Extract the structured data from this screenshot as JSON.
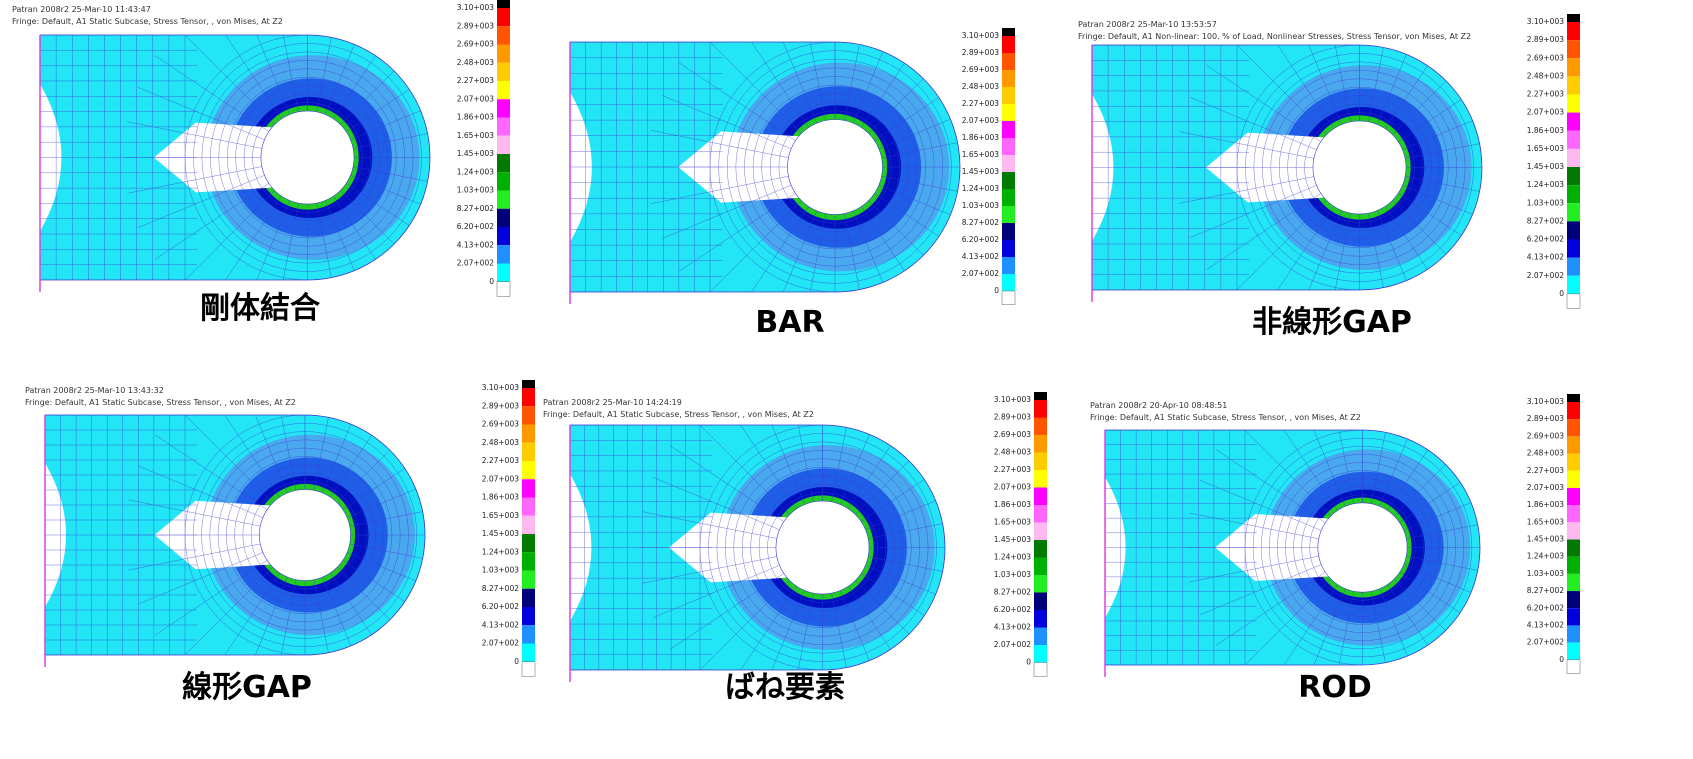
{
  "legend": {
    "labels": [
      "3.10+003",
      "2.89+003",
      "2.69+003",
      "2.48+003",
      "2.27+003",
      "2.07+003",
      "1.86+003",
      "1.65+003",
      "1.45+003",
      "1.24+003",
      "1.03+003",
      "8.27+002",
      "6.20+002",
      "4.13+002",
      "2.07+002",
      "0"
    ]
  },
  "panels": [
    {
      "header": [
        "Patran 2008r2 25-Mar-10 11:43:47",
        "Fringe: Default, A1 Static Subcase, Stress Tensor, , von Mises, At Z2"
      ],
      "caption": "剛体結合"
    },
    {
      "caption": "BAR"
    },
    {
      "header": [
        "Patran 2008r2 25-Mar-10 13:53:57",
        "Fringe: Default, A1 Non-linear: 100. % of Load, Nonlinear Stresses, Stress Tensor, von Mises, At Z2"
      ],
      "caption": "非線形GAP"
    },
    {
      "header": [
        "Patran 2008r2 25-Mar-10 13:43:32",
        "Fringe: Default, A1 Static Subcase, Stress Tensor, , von Mises, At Z2"
      ],
      "caption": "線形GAP"
    },
    {
      "header": [
        "Patran 2008r2 25-Mar-10 14:24:19",
        "Fringe: Default, A1 Static Subcase, Stress Tensor, , von Mises, At Z2"
      ],
      "caption": "ばね要素"
    },
    {
      "header": [
        "Patran 2008r2 20-Apr-10 08:48:51",
        "Fringe: Default, A1 Static Subcase, Stress Tensor, , von Mises, At Z2"
      ],
      "caption": "ROD"
    }
  ]
}
